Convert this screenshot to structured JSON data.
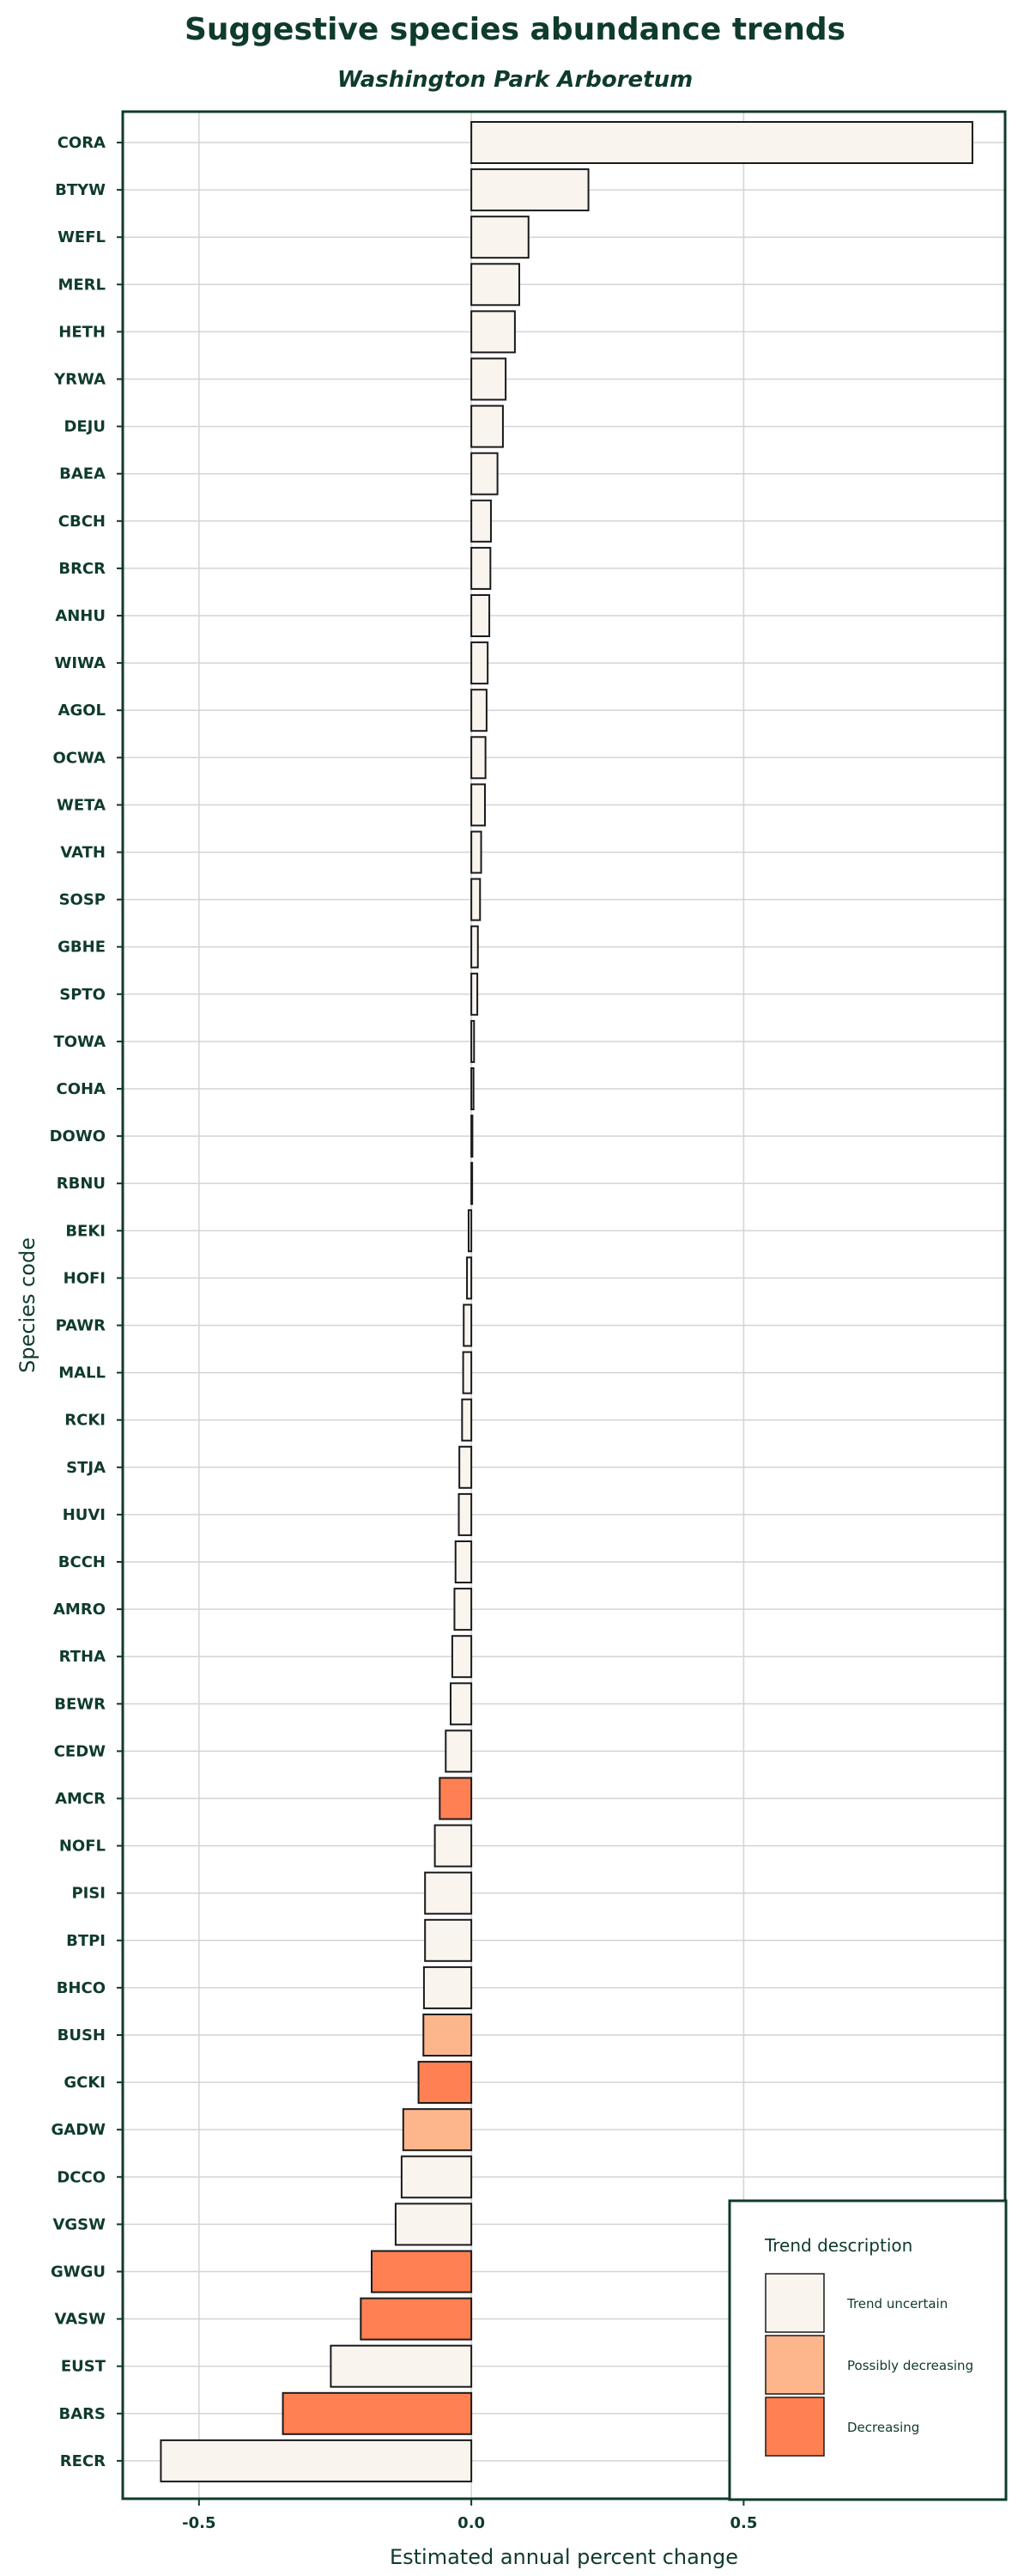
{
  "chart_data": {
    "type": "bar",
    "orientation": "horizontal",
    "title": "Suggestive species abundance trends",
    "subtitle": "Washington Park Arboretum",
    "xlabel": "Estimated annual percent change",
    "ylabel": "Species code",
    "xlim": [
      -0.64,
      0.98
    ],
    "xticks": [
      -0.5,
      0.0,
      0.5
    ],
    "xtick_labels": [
      "-0.5",
      "0.0",
      "0.5"
    ],
    "grid": true,
    "legend": {
      "title": "Trend description",
      "position": "bottom-right",
      "entries": [
        {
          "label": "Trend uncertain",
          "color": "#faf4ef"
        },
        {
          "label": "Possibly decreasing",
          "color": "#fdb68c"
        },
        {
          "label": "Decreasing",
          "color": "#ff8052"
        }
      ]
    },
    "bars": [
      {
        "category": "CORA",
        "value": 0.92,
        "trend": "Trend uncertain"
      },
      {
        "category": "BTYW",
        "value": 0.215,
        "trend": "Trend uncertain"
      },
      {
        "category": "WEFL",
        "value": 0.105,
        "trend": "Trend uncertain"
      },
      {
        "category": "MERL",
        "value": 0.088,
        "trend": "Trend uncertain"
      },
      {
        "category": "HETH",
        "value": 0.08,
        "trend": "Trend uncertain"
      },
      {
        "category": "YRWA",
        "value": 0.063,
        "trend": "Trend uncertain"
      },
      {
        "category": "DEJU",
        "value": 0.058,
        "trend": "Trend uncertain"
      },
      {
        "category": "BAEA",
        "value": 0.048,
        "trend": "Trend uncertain"
      },
      {
        "category": "CBCH",
        "value": 0.036,
        "trend": "Trend uncertain"
      },
      {
        "category": "BRCR",
        "value": 0.035,
        "trend": "Trend uncertain"
      },
      {
        "category": "ANHU",
        "value": 0.033,
        "trend": "Trend uncertain"
      },
      {
        "category": "WIWA",
        "value": 0.03,
        "trend": "Trend uncertain"
      },
      {
        "category": "AGOL",
        "value": 0.028,
        "trend": "Trend uncertain"
      },
      {
        "category": "OCWA",
        "value": 0.026,
        "trend": "Trend uncertain"
      },
      {
        "category": "WETA",
        "value": 0.025,
        "trend": "Trend uncertain"
      },
      {
        "category": "VATH",
        "value": 0.018,
        "trend": "Trend uncertain"
      },
      {
        "category": "SOSP",
        "value": 0.016,
        "trend": "Trend uncertain"
      },
      {
        "category": "GBHE",
        "value": 0.012,
        "trend": "Trend uncertain"
      },
      {
        "category": "SPTO",
        "value": 0.011,
        "trend": "Trend uncertain"
      },
      {
        "category": "TOWA",
        "value": 0.005,
        "trend": "Trend uncertain"
      },
      {
        "category": "COHA",
        "value": 0.004,
        "trend": "Trend uncertain"
      },
      {
        "category": "DOWO",
        "value": 0.002,
        "trend": "Trend uncertain"
      },
      {
        "category": "RBNU",
        "value": 0.0,
        "trend": "Trend uncertain"
      },
      {
        "category": "BEKI",
        "value": -0.005,
        "trend": "Trend uncertain"
      },
      {
        "category": "HOFI",
        "value": -0.008,
        "trend": "Trend uncertain"
      },
      {
        "category": "PAWR",
        "value": -0.014,
        "trend": "Trend uncertain"
      },
      {
        "category": "MALL",
        "value": -0.015,
        "trend": "Trend uncertain"
      },
      {
        "category": "RCKI",
        "value": -0.017,
        "trend": "Trend uncertain"
      },
      {
        "category": "STJA",
        "value": -0.022,
        "trend": "Trend uncertain"
      },
      {
        "category": "HUVI",
        "value": -0.023,
        "trend": "Trend uncertain"
      },
      {
        "category": "BCCH",
        "value": -0.029,
        "trend": "Trend uncertain"
      },
      {
        "category": "AMRO",
        "value": -0.031,
        "trend": "Trend uncertain"
      },
      {
        "category": "RTHA",
        "value": -0.035,
        "trend": "Trend uncertain"
      },
      {
        "category": "BEWR",
        "value": -0.038,
        "trend": "Trend uncertain"
      },
      {
        "category": "CEDW",
        "value": -0.047,
        "trend": "Trend uncertain"
      },
      {
        "category": "AMCR",
        "value": -0.058,
        "trend": "Decreasing"
      },
      {
        "category": "NOFL",
        "value": -0.067,
        "trend": "Trend uncertain"
      },
      {
        "category": "PISI",
        "value": -0.085,
        "trend": "Trend uncertain"
      },
      {
        "category": "BTPI",
        "value": -0.085,
        "trend": "Trend uncertain"
      },
      {
        "category": "BHCO",
        "value": -0.087,
        "trend": "Trend uncertain"
      },
      {
        "category": "BUSH",
        "value": -0.088,
        "trend": "Possibly decreasing"
      },
      {
        "category": "GCKI",
        "value": -0.097,
        "trend": "Decreasing"
      },
      {
        "category": "GADW",
        "value": -0.125,
        "trend": "Possibly decreasing"
      },
      {
        "category": "DCCO",
        "value": -0.128,
        "trend": "Trend uncertain"
      },
      {
        "category": "VGSW",
        "value": -0.139,
        "trend": "Trend uncertain"
      },
      {
        "category": "GWGU",
        "value": -0.183,
        "trend": "Decreasing"
      },
      {
        "category": "VASW",
        "value": -0.203,
        "trend": "Decreasing"
      },
      {
        "category": "EUST",
        "value": -0.258,
        "trend": "Trend uncertain"
      },
      {
        "category": "BARS",
        "value": -0.346,
        "trend": "Decreasing"
      },
      {
        "category": "RECR",
        "value": -0.57,
        "trend": "Trend uncertain"
      }
    ]
  },
  "colors": {
    "text": "#0f3b2a",
    "frame": "#0f3b2a",
    "grid": "#d4d4d4",
    "bar_stroke": "#1a1a1a"
  }
}
